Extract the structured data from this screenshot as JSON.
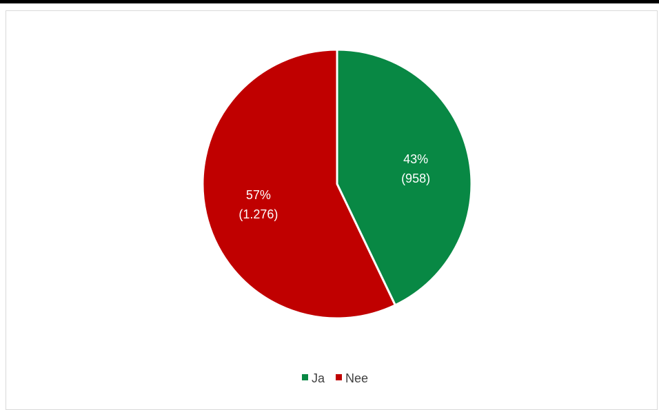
{
  "chart_data": {
    "type": "pie",
    "title": "",
    "categories": [
      "Ja",
      "Nee"
    ],
    "values": [
      958,
      1276
    ],
    "percent_labels": [
      "43%",
      "57%"
    ],
    "value_labels": [
      "(958)",
      "(1.276)"
    ],
    "colors": [
      "#088844",
      "#c00000"
    ],
    "legend": {
      "placement": "bottom",
      "entries": [
        "Ja",
        "Nee"
      ]
    },
    "start_angle_deg": 0,
    "direction": "clockwise"
  }
}
